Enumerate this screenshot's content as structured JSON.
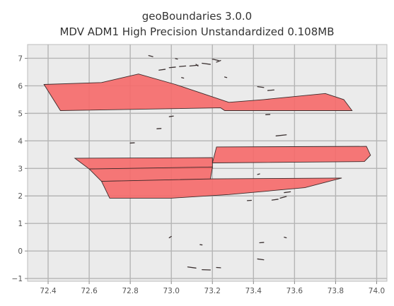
{
  "chart_data": {
    "type": "map",
    "title": [
      "geoBoundaries 3.0.0",
      "MDV ADM1 High Precision Unstandardized 0.108MB"
    ],
    "xlim": [
      72.3,
      74.05
    ],
    "ylim": [
      -1.1,
      7.5
    ],
    "grid": true,
    "x_ticks": [
      72.4,
      72.6,
      72.8,
      73.0,
      73.2,
      73.4,
      73.6,
      73.8,
      74.0
    ],
    "x_tick_labels": [
      "72.4",
      "72.6",
      "72.8",
      "73.0",
      "73.2",
      "73.4",
      "73.6",
      "73.8",
      "74.0"
    ],
    "y_ticks": [
      -1,
      0,
      1,
      2,
      3,
      4,
      5,
      6,
      7
    ],
    "y_tick_labels": [
      "−1",
      "0",
      "1",
      "2",
      "3",
      "4",
      "5",
      "6",
      "7"
    ],
    "colors": {
      "fill": "#f56b6b",
      "edge": "#3c2b2b",
      "background": "#ebebeb",
      "grid": "#b5b5b5"
    },
    "polygons": [
      [
        [
          72.38,
          6.05
        ],
        [
          72.66,
          6.12
        ],
        [
          72.84,
          6.43
        ],
        [
          73.02,
          6.05
        ],
        [
          73.12,
          5.8
        ],
        [
          73.28,
          5.4
        ],
        [
          73.45,
          5.5
        ],
        [
          73.75,
          5.72
        ],
        [
          73.84,
          5.5
        ],
        [
          73.88,
          5.1
        ],
        [
          73.26,
          5.1
        ],
        [
          73.24,
          5.2
        ],
        [
          72.46,
          5.1
        ]
      ],
      [
        [
          72.53,
          3.37
        ],
        [
          73.2,
          3.39
        ],
        [
          73.2,
          3.0
        ],
        [
          72.6,
          2.98
        ]
      ],
      [
        [
          73.22,
          3.78
        ],
        [
          73.95,
          3.8
        ],
        [
          73.97,
          3.48
        ],
        [
          73.94,
          3.25
        ],
        [
          73.2,
          3.2
        ]
      ],
      [
        [
          72.6,
          2.98
        ],
        [
          73.2,
          3.05
        ],
        [
          73.19,
          2.6
        ],
        [
          72.66,
          2.53
        ]
      ],
      [
        [
          72.66,
          2.53
        ],
        [
          73.2,
          2.62
        ],
        [
          73.83,
          2.65
        ],
        [
          73.65,
          2.3
        ],
        [
          73.28,
          2.05
        ],
        [
          73.0,
          1.92
        ],
        [
          72.7,
          1.92
        ]
      ]
    ],
    "islets": [
      [
        [
          72.89,
          7.1
        ],
        [
          72.91,
          7.06
        ]
      ],
      [
        [
          73.02,
          6.99
        ],
        [
          73.03,
          6.97
        ]
      ],
      [
        [
          73.2,
          6.97
        ],
        [
          73.23,
          6.92
        ]
      ],
      [
        [
          73.22,
          6.86
        ],
        [
          73.24,
          6.92
        ]
      ],
      [
        [
          73.15,
          6.82
        ],
        [
          73.19,
          6.78
        ]
      ],
      [
        [
          73.09,
          6.72
        ],
        [
          73.13,
          6.75
        ]
      ],
      [
        [
          73.04,
          6.7
        ],
        [
          73.07,
          6.72
        ]
      ],
      [
        [
          72.99,
          6.66
        ],
        [
          73.02,
          6.68
        ]
      ],
      [
        [
          72.94,
          6.57
        ],
        [
          72.97,
          6.6
        ]
      ],
      [
        [
          73.12,
          6.78
        ],
        [
          73.13,
          6.72
        ]
      ],
      [
        [
          73.05,
          6.3
        ],
        [
          73.06,
          6.28
        ]
      ],
      [
        [
          73.26,
          6.32
        ],
        [
          73.27,
          6.3
        ]
      ],
      [
        [
          73.42,
          5.97
        ],
        [
          73.45,
          5.94
        ]
      ],
      [
        [
          73.47,
          5.83
        ],
        [
          73.5,
          5.85
        ]
      ],
      [
        [
          73.46,
          4.95
        ],
        [
          73.48,
          4.96
        ]
      ],
      [
        [
          72.99,
          4.88
        ],
        [
          73.01,
          4.9
        ]
      ],
      [
        [
          72.93,
          4.44
        ],
        [
          72.95,
          4.45
        ]
      ],
      [
        [
          73.51,
          4.18
        ],
        [
          73.56,
          4.22
        ]
      ],
      [
        [
          72.8,
          3.92
        ],
        [
          72.82,
          3.93
        ]
      ],
      [
        [
          73.42,
          2.78
        ],
        [
          73.43,
          2.8
        ]
      ],
      [
        [
          73.55,
          2.12
        ],
        [
          73.58,
          2.15
        ]
      ],
      [
        [
          73.53,
          1.92
        ],
        [
          73.56,
          1.98
        ]
      ],
      [
        [
          73.49,
          1.85
        ],
        [
          73.52,
          1.88
        ]
      ],
      [
        [
          73.37,
          1.83
        ],
        [
          73.39,
          1.84
        ]
      ],
      [
        [
          72.99,
          0.48
        ],
        [
          73.0,
          0.53
        ]
      ],
      [
        [
          73.43,
          0.3
        ],
        [
          73.45,
          0.31
        ]
      ],
      [
        [
          73.55,
          0.5
        ],
        [
          73.56,
          0.48
        ]
      ],
      [
        [
          73.14,
          0.23
        ],
        [
          73.15,
          0.22
        ]
      ],
      [
        [
          73.42,
          -0.29
        ],
        [
          73.45,
          -0.32
        ]
      ],
      [
        [
          73.08,
          -0.58
        ],
        [
          73.12,
          -0.62
        ]
      ],
      [
        [
          73.15,
          -0.68
        ],
        [
          73.19,
          -0.69
        ]
      ],
      [
        [
          73.22,
          -0.6
        ],
        [
          73.24,
          -0.61
        ]
      ]
    ]
  }
}
